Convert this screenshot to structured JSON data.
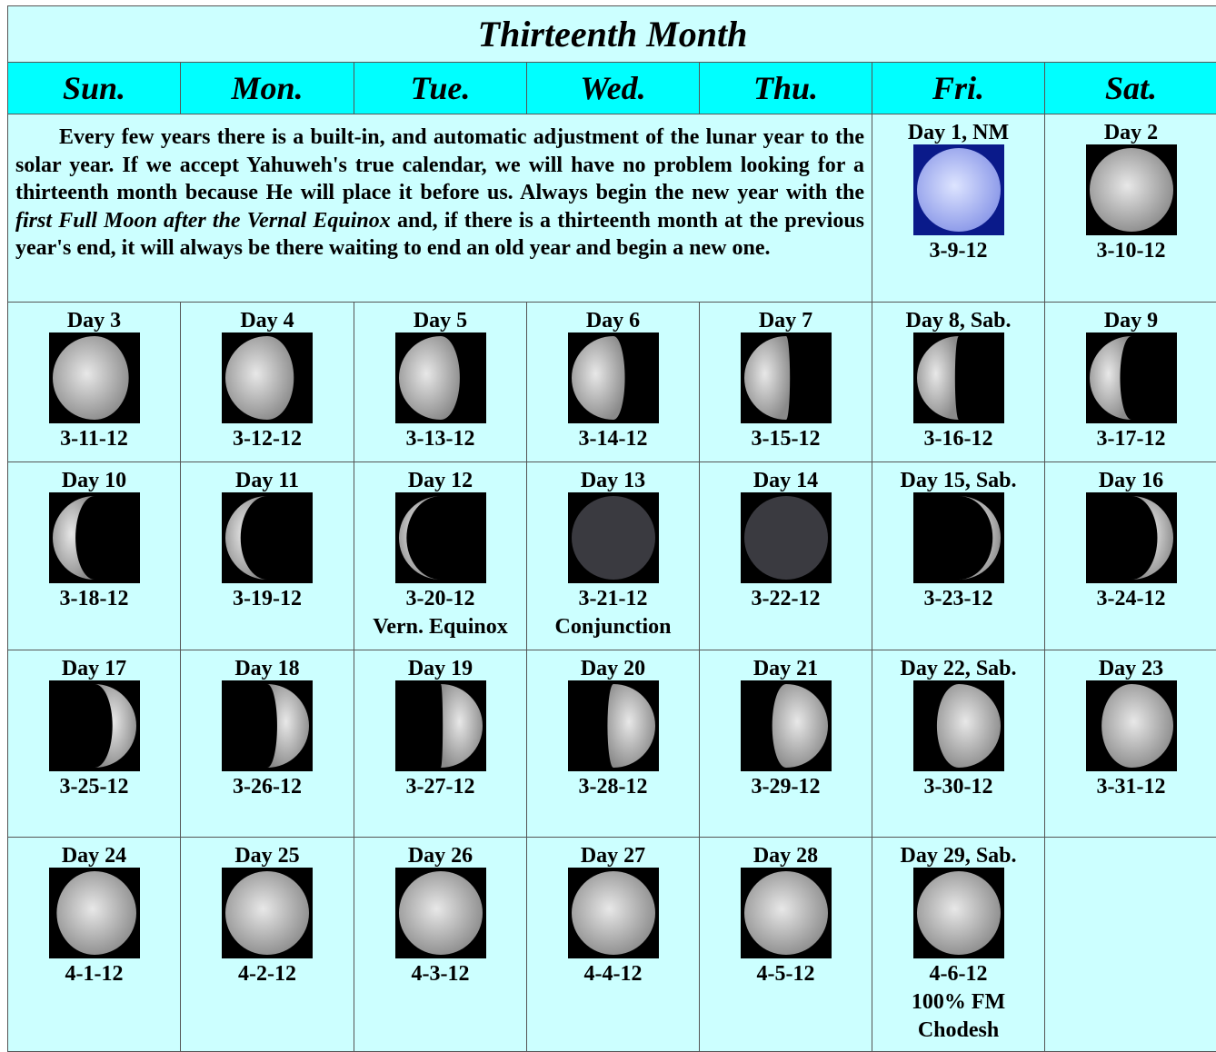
{
  "title": "Thirteenth Month",
  "days": [
    "Sun.",
    "Mon.",
    "Tue.",
    "Wed.",
    "Thu.",
    "Fri.",
    "Sat."
  ],
  "intro": [
    "Every few years there is a built-in, and automatic adjustment of the lunar year to the solar year.  If we accept Yahuweh's true calendar, we will have no problem looking for a thirteenth month because He will place it before us.  Always begin the new year with the ",
    "first Full Moon after the Vernal Equinox",
    " and, if there is a thirteenth month at the previous year's end, it will always be there waiting to end an old year and begin a new one."
  ],
  "rows": [
    [
      {
        "day": "Day 1, NM",
        "date": "3-9-12"
      },
      {
        "day": "Day 2",
        "date": "3-10-12"
      }
    ],
    [
      {
        "day": "Day 3",
        "date": "3-11-12"
      },
      {
        "day": "Day 4",
        "date": "3-12-12"
      },
      {
        "day": "Day 5",
        "date": "3-13-12"
      },
      {
        "day": "Day 6",
        "date": "3-14-12"
      },
      {
        "day": "Day 7",
        "date": "3-15-12"
      },
      {
        "day": "Day 8, Sab.",
        "date": "3-16-12"
      },
      {
        "day": "Day 9",
        "date": "3-17-12"
      }
    ],
    [
      {
        "day": "Day 10",
        "date": "3-18-12"
      },
      {
        "day": "Day 11",
        "date": "3-19-12"
      },
      {
        "day": "Day 12",
        "date": "3-20-12",
        "notes": [
          "Vern. Equinox"
        ]
      },
      {
        "day": "Day 13",
        "date": "3-21-12",
        "notes": [
          "Conjunction"
        ]
      },
      {
        "day": "Day 14",
        "date": "3-22-12"
      },
      {
        "day": "Day 15, Sab.",
        "date": "3-23-12"
      },
      {
        "day": "Day 16",
        "date": "3-24-12"
      }
    ],
    [
      {
        "day": "Day 17",
        "date": "3-25-12"
      },
      {
        "day": "Day 18",
        "date": "3-26-12"
      },
      {
        "day": "Day 19",
        "date": "3-27-12"
      },
      {
        "day": "Day 20",
        "date": "3-28-12"
      },
      {
        "day": "Day 21",
        "date": "3-29-12"
      },
      {
        "day": "Day 22, Sab.",
        "date": "3-30-12"
      },
      {
        "day": "Day 23",
        "date": "3-31-12"
      }
    ],
    [
      {
        "day": "Day 24",
        "date": "4-1-12"
      },
      {
        "day": "Day 25",
        "date": "4-2-12"
      },
      {
        "day": "Day 26",
        "date": "4-3-12"
      },
      {
        "day": "Day 27",
        "date": "4-4-12"
      },
      {
        "day": "Day 28",
        "date": "4-5-12"
      },
      {
        "day": "Day 29, Sab.",
        "date": "4-6-12",
        "notes": [
          "100% FM",
          "Chodesh"
        ]
      }
    ]
  ]
}
